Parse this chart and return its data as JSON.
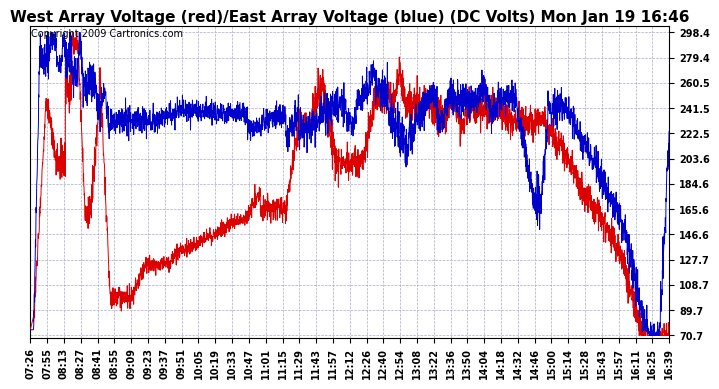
{
  "title": "West Array Voltage (red)/East Array Voltage (blue) (DC Volts) Mon Jan 19 16:46",
  "copyright_text": "Copyright 2009 Cartronics.com",
  "yticks": [
    70.7,
    89.7,
    108.7,
    127.7,
    146.6,
    165.6,
    184.6,
    203.6,
    222.5,
    241.5,
    260.5,
    279.4,
    298.4
  ],
  "xtick_labels": [
    "07:26",
    "07:55",
    "08:13",
    "08:27",
    "08:41",
    "08:55",
    "09:09",
    "09:23",
    "09:37",
    "09:51",
    "10:05",
    "10:19",
    "10:33",
    "10:47",
    "11:01",
    "11:15",
    "11:29",
    "11:43",
    "11:57",
    "12:12",
    "12:26",
    "12:40",
    "12:54",
    "13:08",
    "13:22",
    "13:36",
    "13:50",
    "14:04",
    "14:18",
    "14:32",
    "14:46",
    "15:00",
    "15:14",
    "15:28",
    "15:43",
    "15:57",
    "16:11",
    "16:25",
    "16:39"
  ],
  "ymin": 70.7,
  "ymax": 298.4,
  "bg_color": "#ffffff",
  "grid_color": "#aaaacc",
  "red_color": "#dd0000",
  "blue_color": "#0000cc",
  "title_fontsize": 11,
  "copyright_fontsize": 7,
  "tick_fontsize": 7
}
